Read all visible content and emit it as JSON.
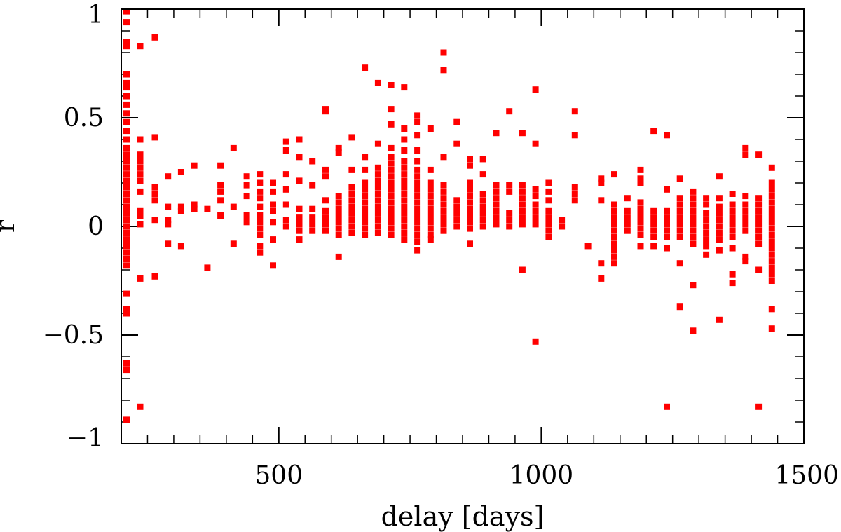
{
  "chart_data": {
    "type": "scatter",
    "title": "",
    "xlabel": "delay [days]",
    "ylabel": "r",
    "xlim": [
      200,
      1500
    ],
    "ylim": [
      -1,
      1
    ],
    "xticks_major": [
      500,
      1000,
      1500
    ],
    "xticks_major_labels": [
      "500",
      "1000",
      "1500"
    ],
    "xticks_minor_step": 50,
    "yticks_major": [
      -1,
      -0.5,
      0,
      0.5,
      1
    ],
    "yticks_major_labels": [
      "−1",
      "−0.5",
      "0",
      "0.5",
      "1"
    ],
    "yticks_minor_step": 0.1,
    "grid": false,
    "legend": "none",
    "marker_color": "#ff0000",
    "marker": "square",
    "columns": [
      {
        "x": 210,
        "y": [
          0.99,
          0.94,
          0.85,
          0.83,
          0.7,
          0.66,
          0.64,
          0.6,
          0.56,
          0.52,
          0.48,
          0.44,
          0.4,
          0.36,
          0.33,
          0.3,
          0.27,
          0.24,
          0.21,
          0.18,
          0.15,
          0.12,
          0.09,
          0.06,
          0.03,
          0.0,
          -0.03,
          -0.06,
          -0.09,
          -0.12,
          -0.15,
          -0.18,
          -0.31,
          -0.38,
          -0.4,
          -0.63,
          -0.66,
          -0.89
        ]
      },
      {
        "x": 236,
        "y": [
          0.83,
          0.4,
          0.33,
          0.3,
          0.27,
          0.24,
          0.21,
          0.16,
          0.07,
          0.05,
          0.01,
          -0.24,
          -0.83
        ]
      },
      {
        "x": 264,
        "y": [
          0.87,
          0.41,
          0.18,
          0.15,
          0.12,
          0.03,
          -0.23
        ]
      },
      {
        "x": 289,
        "y": [
          0.23,
          0.09,
          0.03,
          0.01,
          -0.08
        ]
      },
      {
        "x": 314,
        "y": [
          0.25,
          0.09,
          0.07,
          -0.09
        ]
      },
      {
        "x": 339,
        "y": [
          0.28,
          0.1,
          0.08
        ]
      },
      {
        "x": 364,
        "y": [
          0.08,
          -0.19
        ]
      },
      {
        "x": 389,
        "y": [
          0.28,
          0.19,
          0.16,
          0.12,
          0.05
        ]
      },
      {
        "x": 414,
        "y": [
          0.36,
          0.09,
          -0.08
        ]
      },
      {
        "x": 439,
        "y": [
          0.23,
          0.19,
          0.14,
          0.05,
          0.02
        ]
      },
      {
        "x": 464,
        "y": [
          0.24,
          0.2,
          0.16,
          0.13,
          0.09,
          0.05,
          0.02,
          -0.01,
          -0.04,
          -0.09,
          -0.12
        ]
      },
      {
        "x": 489,
        "y": [
          0.2,
          0.16,
          0.1,
          0.07,
          0.02,
          -0.06,
          -0.18
        ]
      },
      {
        "x": 514,
        "y": [
          0.39,
          0.35,
          0.24,
          0.17,
          0.1,
          0.03,
          0.0
        ]
      },
      {
        "x": 539,
        "y": [
          0.4,
          0.32,
          0.21,
          0.08,
          0.04,
          0.01,
          -0.02,
          -0.06
        ]
      },
      {
        "x": 564,
        "y": [
          0.3,
          0.19,
          0.08,
          0.04,
          0.01,
          -0.02
        ]
      },
      {
        "x": 589,
        "y": [
          0.54,
          0.53,
          0.26,
          0.23,
          0.12,
          0.07,
          0.04,
          0.01,
          -0.02
        ]
      },
      {
        "x": 614,
        "y": [
          0.36,
          0.34,
          0.14,
          0.11,
          0.08,
          0.05,
          0.02,
          -0.01,
          -0.04,
          -0.14
        ]
      },
      {
        "x": 639,
        "y": [
          0.41,
          0.26,
          0.18,
          0.15,
          0.12,
          0.09,
          0.06,
          0.03,
          0.0,
          -0.03
        ]
      },
      {
        "x": 664,
        "y": [
          0.73,
          0.32,
          0.26,
          0.2,
          0.17,
          0.14,
          0.11,
          0.08,
          0.05,
          0.02,
          -0.01,
          -0.04
        ]
      },
      {
        "x": 689,
        "y": [
          0.66,
          0.38,
          0.27,
          0.24,
          0.21,
          0.18,
          0.15,
          0.12,
          0.09,
          0.06,
          0.03,
          0.0,
          -0.03
        ]
      },
      {
        "x": 714,
        "y": [
          0.65,
          0.54,
          0.47,
          0.36,
          0.32,
          0.29,
          0.26,
          0.23,
          0.2,
          0.17,
          0.14,
          0.11,
          0.08,
          0.05,
          0.02,
          -0.01,
          -0.04
        ]
      },
      {
        "x": 739,
        "y": [
          0.64,
          0.45,
          0.4,
          0.35,
          0.3,
          0.27,
          0.24,
          0.21,
          0.18,
          0.15,
          0.12,
          0.09,
          0.06,
          0.03,
          0.0,
          -0.03,
          -0.06
        ]
      },
      {
        "x": 764,
        "y": [
          0.51,
          0.48,
          0.42,
          0.35,
          0.3,
          0.26,
          0.23,
          0.2,
          0.17,
          0.14,
          0.11,
          0.08,
          0.05,
          0.02,
          -0.01,
          -0.04,
          -0.07,
          -0.11
        ]
      },
      {
        "x": 789,
        "y": [
          0.45,
          0.26,
          0.2,
          0.17,
          0.14,
          0.11,
          0.08,
          0.05,
          0.02,
          -0.01,
          -0.04,
          -0.06
        ]
      },
      {
        "x": 814,
        "y": [
          0.8,
          0.72,
          0.32,
          0.19,
          0.16,
          0.13,
          0.1,
          0.07,
          0.04,
          0.01,
          -0.02
        ]
      },
      {
        "x": 839,
        "y": [
          0.48,
          0.38,
          0.12,
          0.09,
          0.06,
          0.03,
          0.0
        ]
      },
      {
        "x": 864,
        "y": [
          0.31,
          0.28,
          0.2,
          0.17,
          0.14,
          0.11,
          0.08,
          0.05,
          0.02,
          -0.01,
          -0.08
        ]
      },
      {
        "x": 889,
        "y": [
          0.31,
          0.24,
          0.15,
          0.12,
          0.09,
          0.06,
          0.03,
          0.0
        ]
      },
      {
        "x": 914,
        "y": [
          0.43,
          0.19,
          0.16,
          0.13,
          0.1,
          0.07,
          0.04,
          0.01
        ]
      },
      {
        "x": 939,
        "y": [
          0.53,
          0.19,
          0.16,
          0.06,
          0.03,
          0.0
        ]
      },
      {
        "x": 964,
        "y": [
          0.43,
          0.19,
          0.16,
          0.13,
          0.1,
          0.07,
          0.04,
          0.01,
          -0.2
        ]
      },
      {
        "x": 989,
        "y": [
          0.63,
          0.38,
          0.17,
          0.14,
          0.1,
          0.07,
          0.04,
          0.01,
          -0.53
        ]
      },
      {
        "x": 1014,
        "y": [
          0.2,
          0.16,
          0.12,
          0.07,
          0.04,
          0.01,
          -0.02,
          -0.05
        ]
      },
      {
        "x": 1039,
        "y": [
          0.03,
          0.0
        ]
      },
      {
        "x": 1064,
        "y": [
          0.53,
          0.42,
          0.18,
          0.15,
          0.12
        ]
      },
      {
        "x": 1089,
        "y": [
          -0.09
        ]
      },
      {
        "x": 1114,
        "y": [
          0.22,
          0.2,
          0.12,
          -0.17,
          -0.24
        ]
      },
      {
        "x": 1139,
        "y": [
          0.24,
          0.1,
          0.07,
          0.04,
          0.01,
          -0.02,
          -0.05,
          -0.08,
          -0.11,
          -0.14,
          -0.17
        ]
      },
      {
        "x": 1164,
        "y": [
          0.13,
          0.07,
          0.04,
          0.01,
          -0.02
        ]
      },
      {
        "x": 1189,
        "y": [
          0.26,
          0.22,
          0.2,
          0.11,
          0.08,
          0.05,
          0.02,
          -0.01,
          -0.04,
          -0.09
        ]
      },
      {
        "x": 1214,
        "y": [
          0.44,
          0.07,
          0.04,
          0.01,
          -0.02,
          -0.05,
          -0.09
        ]
      },
      {
        "x": 1239,
        "y": [
          0.42,
          0.17,
          0.07,
          0.04,
          0.01,
          -0.02,
          -0.05,
          -0.1,
          -0.83
        ]
      },
      {
        "x": 1264,
        "y": [
          0.22,
          0.13,
          0.1,
          0.07,
          0.04,
          0.01,
          -0.02,
          -0.05,
          -0.17,
          -0.37
        ]
      },
      {
        "x": 1289,
        "y": [
          0.16,
          0.13,
          0.1,
          0.07,
          0.04,
          0.01,
          -0.02,
          -0.05,
          -0.08,
          -0.27,
          -0.48
        ]
      },
      {
        "x": 1314,
        "y": [
          0.13,
          0.1,
          0.06,
          0.03,
          0.0,
          -0.03,
          -0.06,
          -0.09,
          -0.13
        ]
      },
      {
        "x": 1339,
        "y": [
          0.23,
          0.13,
          0.09,
          0.06,
          0.03,
          0.0,
          -0.03,
          -0.06,
          -0.11,
          -0.43
        ]
      },
      {
        "x": 1364,
        "y": [
          0.15,
          0.1,
          0.07,
          0.04,
          0.01,
          -0.02,
          -0.05,
          -0.1,
          -0.22,
          -0.26
        ]
      },
      {
        "x": 1389,
        "y": [
          0.36,
          0.33,
          0.14,
          0.1,
          0.07,
          0.04,
          0.01,
          -0.02,
          -0.14,
          -0.16
        ]
      },
      {
        "x": 1414,
        "y": [
          0.33,
          0.13,
          0.1,
          0.07,
          0.04,
          0.01,
          -0.02,
          -0.05,
          -0.08,
          -0.2,
          -0.83
        ]
      },
      {
        "x": 1439,
        "y": [
          0.27,
          0.2,
          0.17,
          0.14,
          0.11,
          0.08,
          0.05,
          0.02,
          -0.01,
          -0.04,
          -0.07,
          -0.1,
          -0.13,
          -0.16,
          -0.19,
          -0.22,
          -0.25,
          -0.38,
          -0.47
        ]
      }
    ]
  }
}
